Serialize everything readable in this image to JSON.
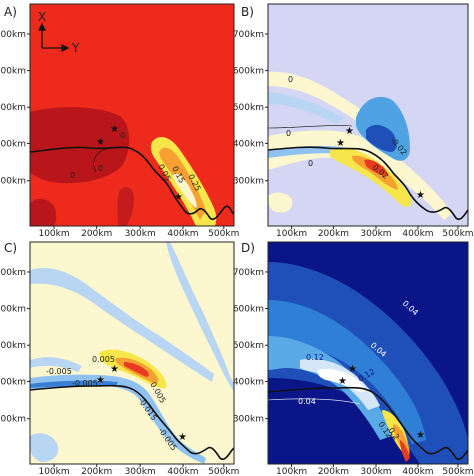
{
  "chart_data": [
    {
      "type": "heatmap",
      "panel_label": "A)",
      "x_ticks": [
        "100km",
        "200km",
        "300km",
        "400km",
        "500km"
      ],
      "y_ticks": [
        "700km",
        "600km",
        "500km",
        "400km",
        "300km"
      ],
      "axes_indicator": {
        "x": "X",
        "y": "Y"
      },
      "background_color": "#ee2a1c",
      "contour_labels": [
        "0",
        "0",
        "0",
        "0.05",
        "0.15",
        "0.25"
      ],
      "stars": 3
    },
    {
      "type": "heatmap",
      "panel_label": "B)",
      "x_ticks": [
        "100km",
        "200km",
        "300km",
        "400km",
        "500km"
      ],
      "y_ticks": [
        "700km",
        "600km",
        "500km",
        "400km",
        "300km"
      ],
      "background_color": "#d4d6f4",
      "contour_labels": [
        "0",
        "0",
        "0",
        "-0.02",
        "0.02"
      ],
      "stars": 3
    },
    {
      "type": "heatmap",
      "panel_label": "C)",
      "x_ticks": [
        "100km",
        "200km",
        "300km",
        "400km",
        "500km"
      ],
      "y_ticks": [
        "700km",
        "600km",
        "500km",
        "400km",
        "300km"
      ],
      "background_color": "#fcf7cf",
      "contour_labels": [
        "0.005",
        "-0.005",
        "-0.005",
        "0.005",
        "-0.015",
        "-0.005"
      ],
      "stars": 3
    },
    {
      "type": "heatmap",
      "panel_label": "D)",
      "x_ticks": [
        "100km",
        "200km",
        "300km",
        "400km",
        "500km"
      ],
      "y_ticks": [
        "700km",
        "600km",
        "500km",
        "400km",
        "300km"
      ],
      "background_color": "#0a1587",
      "contour_labels": [
        "0.04",
        "0.04",
        "0.12",
        "0.12",
        "0.04",
        "0.2",
        "0.12"
      ],
      "stars": 3
    }
  ]
}
